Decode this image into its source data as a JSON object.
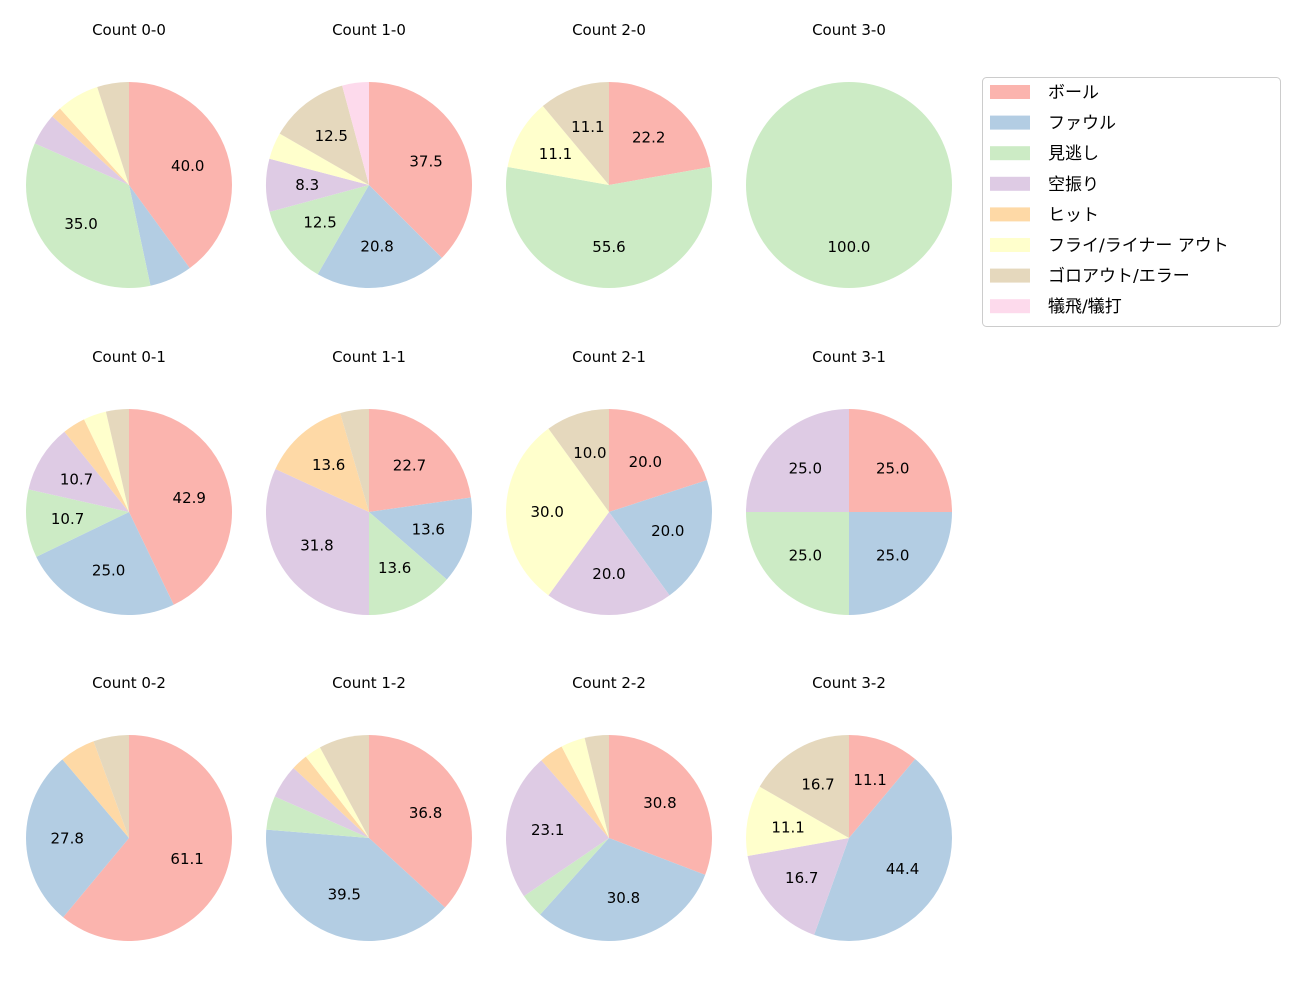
{
  "chart_data": {
    "type": "pie",
    "legend": {
      "placement": "top-right",
      "entries": [
        "ボール",
        "ファウル",
        "見逃し",
        "空振り",
        "ヒット",
        "フライ/ライナー アウト",
        "ゴロアウト/エラー",
        "犠飛/犠打"
      ]
    },
    "colors": [
      "#fbb4ae",
      "#b3cde3",
      "#ccebc5",
      "#decbe4",
      "#fed9a6",
      "#ffffcc",
      "#e5d8bd",
      "#fddaec"
    ],
    "label_format": "percent, one decimal, shown for slices of 8% or more",
    "pies": [
      {
        "title": "Count 0-0",
        "values": [
          40.0,
          6.7,
          35.0,
          5.0,
          1.7,
          6.7,
          5.0,
          0
        ]
      },
      {
        "title": "Count 1-0",
        "values": [
          37.5,
          20.8,
          12.5,
          8.3,
          0,
          4.2,
          12.5,
          4.2
        ]
      },
      {
        "title": "Count 2-0",
        "values": [
          22.2,
          0,
          55.6,
          0,
          0,
          11.1,
          11.1,
          0
        ]
      },
      {
        "title": "Count 3-0",
        "values": [
          0,
          0,
          100.0,
          0,
          0,
          0,
          0,
          0
        ]
      },
      {
        "title": "Count 0-1",
        "values": [
          42.9,
          25.0,
          10.7,
          10.7,
          3.6,
          3.6,
          3.6,
          0
        ]
      },
      {
        "title": "Count 1-1",
        "values": [
          22.7,
          13.6,
          13.6,
          31.8,
          13.6,
          0,
          4.5,
          0
        ]
      },
      {
        "title": "Count 2-1",
        "values": [
          20.0,
          20.0,
          0,
          20.0,
          0,
          30.0,
          10.0,
          0
        ]
      },
      {
        "title": "Count 3-1",
        "values": [
          25.0,
          25.0,
          25.0,
          25.0,
          0,
          0,
          0,
          0
        ]
      },
      {
        "title": "Count 0-2",
        "values": [
          61.1,
          27.8,
          0,
          0,
          5.6,
          0,
          5.6,
          0
        ]
      },
      {
        "title": "Count 1-2",
        "values": [
          36.8,
          39.5,
          5.3,
          5.3,
          2.6,
          2.6,
          7.9,
          0
        ]
      },
      {
        "title": "Count 2-2",
        "values": [
          30.8,
          30.8,
          3.8,
          23.1,
          3.8,
          3.8,
          3.8,
          0
        ]
      },
      {
        "title": "Count 3-2",
        "values": [
          11.1,
          44.4,
          0,
          16.7,
          0,
          11.1,
          16.7,
          0
        ]
      }
    ]
  }
}
